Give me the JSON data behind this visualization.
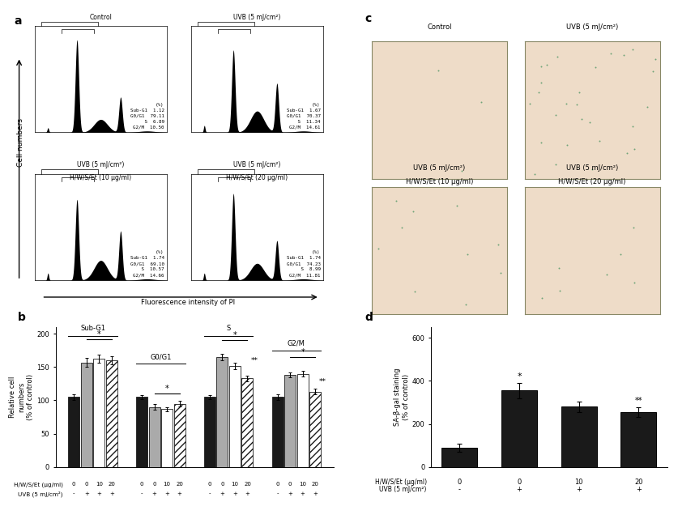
{
  "panel_a": {
    "subpanels": [
      {
        "title": "Control",
        "sub_g1": 1.12,
        "g0g1": 79.11,
        "s": 6.89,
        "g2m": 10.5
      },
      {
        "title": "UVB (5 mJ/cm²)",
        "sub_g1": 1.67,
        "g0g1": 70.37,
        "s": 11.34,
        "g2m": 14.61
      },
      {
        "title": "UVB (5 mJ/cm²)\nH/W/S/Et (10 μg/ml)",
        "sub_g1": 1.74,
        "g0g1": 69.1,
        "s": 10.57,
        "g2m": 14.66
      },
      {
        "title": "UVB (5 mJ/cm²)\nH/W/S/Et (20 μg/ml)",
        "sub_g1": 1.74,
        "g0g1": 74.23,
        "s": 8.99,
        "g2m": 11.81
      }
    ],
    "xlabel": "Fluorescence intensity of PI",
    "ylabel": "Cell numbers"
  },
  "panel_b": {
    "groups": [
      "Sub-G1",
      "G0/G1",
      "S",
      "G2/M"
    ],
    "data": {
      "Sub-G1": [
        105,
        157,
        163,
        160
      ],
      "G0/G1": [
        105,
        90,
        87,
        95
      ],
      "S": [
        105,
        165,
        152,
        133
      ],
      "G2/M": [
        105,
        138,
        140,
        113
      ]
    },
    "errors": {
      "Sub-G1": [
        4,
        7,
        6,
        6
      ],
      "G0/G1": [
        3,
        4,
        3,
        4
      ],
      "S": [
        3,
        5,
        5,
        4
      ],
      "G2/M": [
        4,
        4,
        4,
        4
      ]
    },
    "ylim": [
      0,
      210
    ],
    "yticks": [
      0,
      50,
      100,
      150,
      200
    ],
    "ylabel": "Relative cell\nnumbers\n(% of control)",
    "tick_labels_row1": [
      "0",
      "0",
      "10",
      "20",
      "0",
      "0",
      "10",
      "20",
      "0",
      "0",
      "10",
      "20",
      "0",
      "0",
      "10",
      "20"
    ],
    "tick_labels_row2": [
      "-",
      "+",
      "+",
      "+",
      "-",
      "+",
      "+",
      "+",
      "-",
      "+",
      "+",
      "+",
      "-",
      "+",
      "+",
      "+"
    ]
  },
  "panel_c": {
    "bg_color": "#eedcc8",
    "dot_color": "#5a9a6a",
    "dot_counts": [
      3,
      28,
      10,
      7
    ],
    "titles": [
      "Control",
      "UVB (5 mJ/cm²)",
      "UVB (5 mJ/cm²)\nH/W/S/Et (10 μg/ml)",
      "UVB (5 mJ/cm²)\nH/W/S/Et (20 μg/ml)"
    ]
  },
  "panel_d": {
    "categories": [
      "0",
      "0",
      "10",
      "20"
    ],
    "uvb": [
      "-",
      "+",
      "+",
      "+"
    ],
    "values": [
      90,
      355,
      280,
      255
    ],
    "errors": [
      18,
      35,
      25,
      22
    ],
    "bar_color": "#1a1a1a",
    "ylim": [
      0,
      650
    ],
    "yticks": [
      0,
      200,
      400,
      600
    ],
    "ylabel": "SA-β-gal staining\n(% of control)"
  }
}
